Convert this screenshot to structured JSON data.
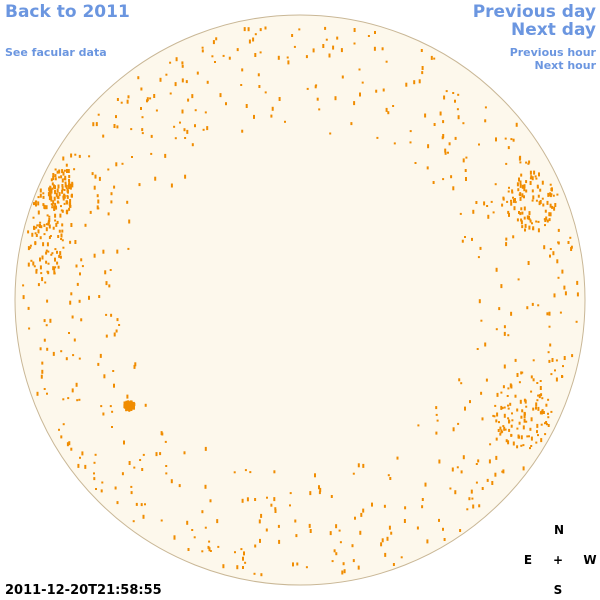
{
  "nav": {
    "back": "Back to 2011",
    "facular": "See facular data",
    "prev_day": "Previous day",
    "next_day": "Next day",
    "prev_hour": "Previous hour",
    "next_hour": "Next hour"
  },
  "timestamp": "2011-12-20T21:58:55",
  "compass": {
    "north": "N",
    "east": "E",
    "center": "+",
    "west": "W",
    "south": "S"
  }
}
